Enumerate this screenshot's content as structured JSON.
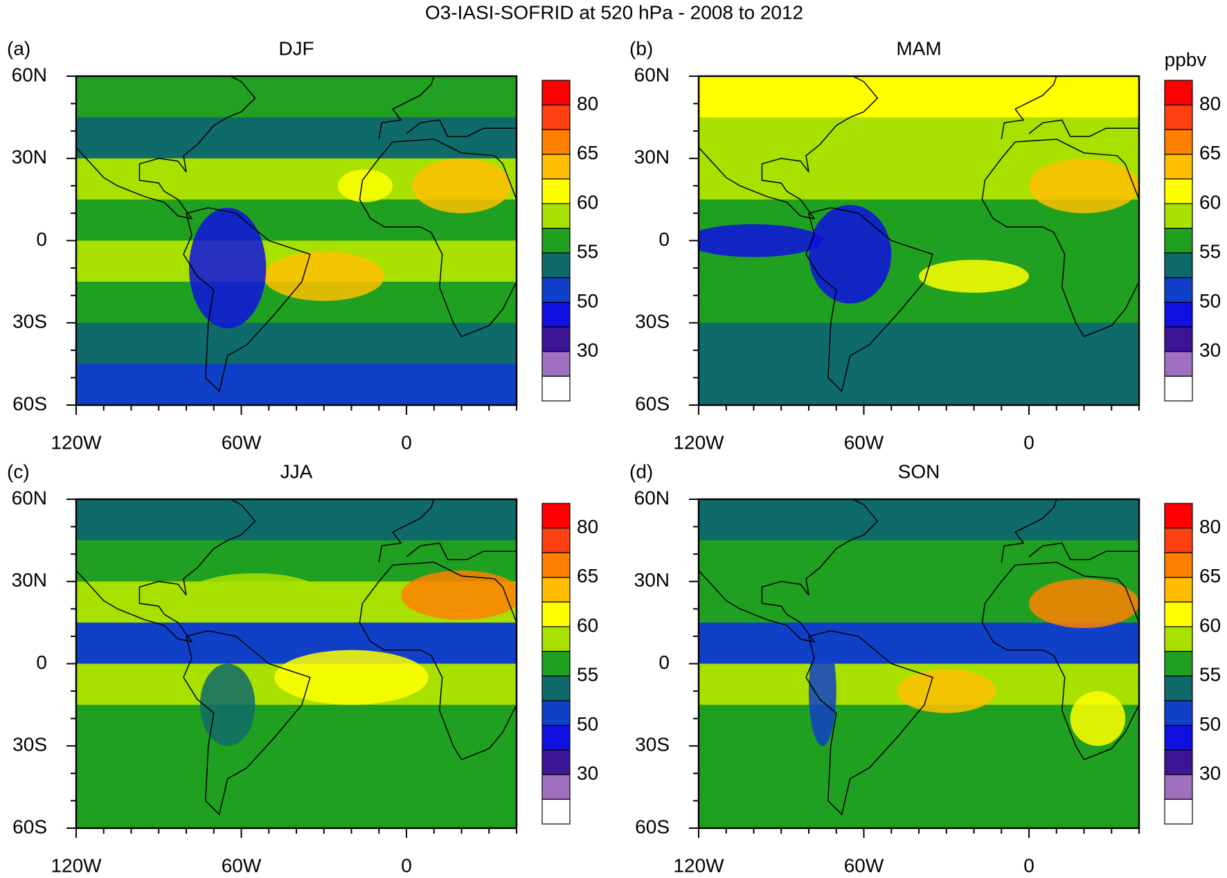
{
  "title": "O3-IASI-SOFRID at 520 hPa - 2008 to 2012",
  "unit": "ppbv",
  "panels": [
    {
      "label": "(a)",
      "season": "DJF"
    },
    {
      "label": "(b)",
      "season": "MAM"
    },
    {
      "label": "(c)",
      "season": "JJA"
    },
    {
      "label": "(d)",
      "season": "SON"
    }
  ],
  "lat_labels": [
    "60N",
    "30N",
    "0",
    "30S",
    "60S"
  ],
  "lon_labels": [
    "120W",
    "60W",
    "0"
  ],
  "colorbar": {
    "labels": [
      80,
      65,
      60,
      55,
      50,
      30
    ],
    "colors": [
      "#ff0000",
      "#ff4010",
      "#ff8000",
      "#ffbf00",
      "#ffff00",
      "#a8e000",
      "#20a020",
      "#0f6a6a",
      "#1040c8",
      "#1010e0",
      "#3c1496",
      "#a070c0",
      "#ffffff"
    ]
  }
}
